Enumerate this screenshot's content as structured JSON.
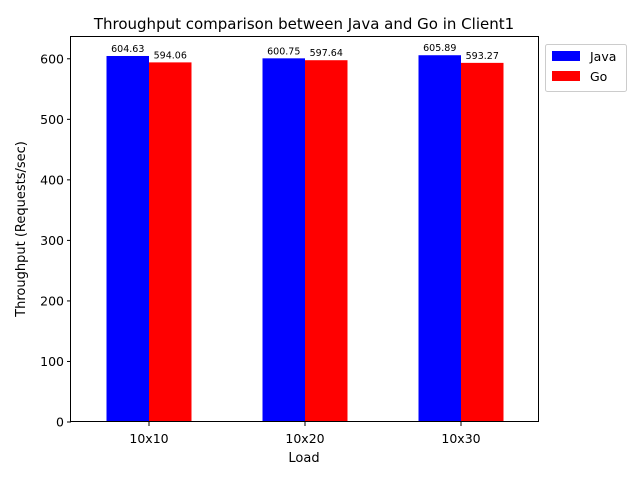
{
  "chart_data": {
    "type": "bar",
    "title": "Throughput comparison between Java and Go in Client1",
    "xlabel": "Load",
    "ylabel": "Throughput (Requests/sec)",
    "categories": [
      "10x10",
      "10x20",
      "10x30"
    ],
    "series": [
      {
        "name": "Java",
        "color": "#0000ff",
        "values": [
          604.63,
          600.75,
          605.89
        ],
        "labels": [
          "604.63",
          "600.75",
          "605.89"
        ]
      },
      {
        "name": "Go",
        "color": "#ff0000",
        "values": [
          594.06,
          597.64,
          593.27
        ],
        "labels": [
          "594.06",
          "597.64",
          "593.27"
        ]
      }
    ],
    "ylim": [
      0,
      636
    ],
    "yticks": [
      0,
      100,
      200,
      300,
      400,
      500,
      600
    ],
    "grid": false,
    "legend_position": "upper right, outside plot"
  }
}
